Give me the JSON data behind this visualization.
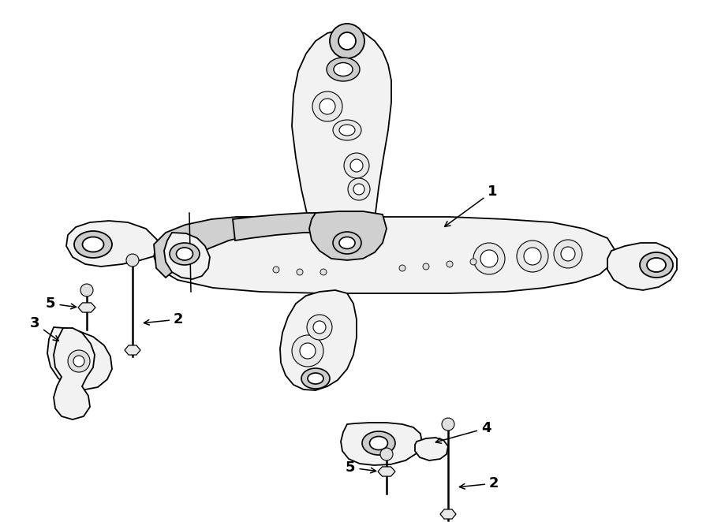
{
  "background_color": "#ffffff",
  "line_color": "#000000",
  "fig_width": 9.0,
  "fig_height": 6.62,
  "dpi": 100,
  "fc_main": "#f2f2f2",
  "fc_dark": "#d0d0d0",
  "fc_hole": "#ffffff",
  "fc_bushing": "#cccccc",
  "lw_main": 1.3,
  "lw_thin": 0.8,
  "label_fontsize": 13
}
